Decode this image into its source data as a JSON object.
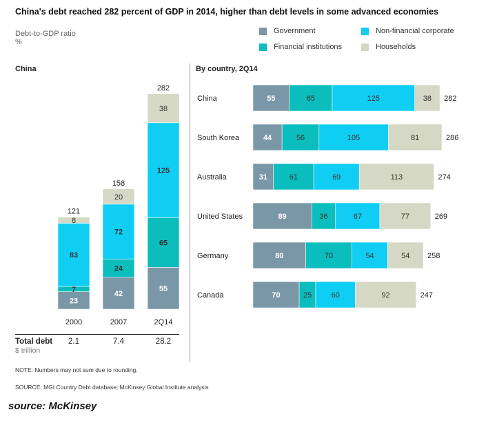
{
  "title": "China's debt reached 282 percent of GDP in 2014, higher than debt levels in some advanced economies",
  "subtitle": "Debt-to-GDP ratio",
  "unit": "%",
  "legend": [
    {
      "name": "Government",
      "color": "#7a97a8"
    },
    {
      "name": "Non-financial corporate",
      "color": "#10cdf4"
    },
    {
      "name": "Financial institutions",
      "color": "#0cbdbd"
    },
    {
      "name": "Households",
      "color": "#d4d8c4"
    }
  ],
  "colors": {
    "text_on_dark": "#ffffff",
    "text_on_light": "#333333"
  },
  "left_panel": {
    "title": "China"
  },
  "right_panel": {
    "title": "By country, 2Q14"
  },
  "total_debt": {
    "label": "Total debt",
    "unit": "$ trillion",
    "values": [
      "2.1",
      "7.4",
      "28.2"
    ]
  },
  "note": "NOTE: Numbers may not sum due to rounding.",
  "source": "SOURCE:  MGI Country Debt database; McKinsey Global Institute analysis",
  "caption": "source: McKinsey",
  "chart_data": [
    {
      "type": "bar",
      "orientation": "vertical",
      "stacked": true,
      "categories": [
        "2000",
        "2007",
        "2Q14"
      ],
      "totals": [
        121,
        158,
        282
      ],
      "series": [
        {
          "name": "Government",
          "values": [
            23,
            42,
            55
          ]
        },
        {
          "name": "Financial institutions",
          "values": [
            7,
            24,
            65
          ]
        },
        {
          "name": "Non-financial corporate",
          "values": [
            83,
            72,
            125
          ]
        },
        {
          "name": "Households",
          "values": [
            8,
            20,
            38
          ]
        }
      ]
    },
    {
      "type": "bar",
      "orientation": "horizontal",
      "stacked": true,
      "categories": [
        "China",
        "South Korea",
        "Australia",
        "United States",
        "Germany",
        "Canada"
      ],
      "totals": [
        282,
        286,
        274,
        269,
        258,
        247
      ],
      "series": [
        {
          "name": "Government",
          "values": [
            55,
            44,
            31,
            89,
            80,
            70
          ]
        },
        {
          "name": "Financial institutions",
          "values": [
            65,
            56,
            61,
            36,
            70,
            25
          ]
        },
        {
          "name": "Non-financial corporate",
          "values": [
            125,
            105,
            69,
            67,
            54,
            60
          ]
        },
        {
          "name": "Households",
          "values": [
            38,
            81,
            113,
            77,
            54,
            92
          ]
        }
      ]
    }
  ]
}
